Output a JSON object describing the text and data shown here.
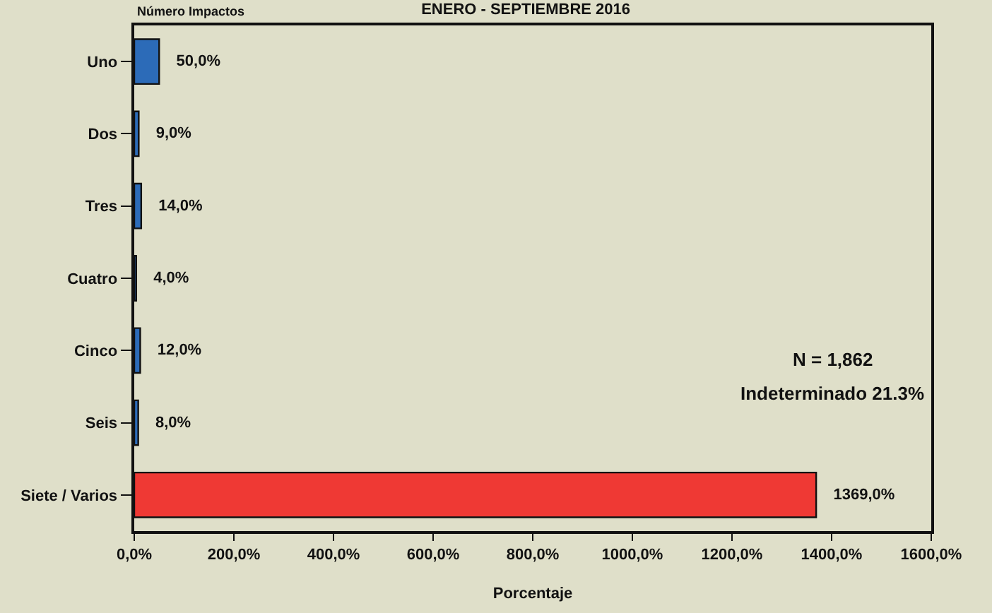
{
  "chart_data": {
    "type": "bar",
    "orientation": "horizontal",
    "title": "ENERO - SEPTIEMBRE 2016",
    "ylabel": "Número Impactos",
    "xlabel": "Porcentaje",
    "categories": [
      "Uno",
      "Dos",
      "Tres",
      "Cuatro",
      "Cinco",
      "Seis",
      "Siete / Varios"
    ],
    "values": [
      50,
      9,
      14,
      4,
      12,
      8,
      1369
    ],
    "colors": [
      "#2c6bb8",
      "#2c6bb8",
      "#2c6bb8",
      "#2c6bb8",
      "#2c6bb8",
      "#2c6bb8",
      "#ef3934"
    ],
    "value_labels": [
      "50,0%",
      "9,0%",
      "14,0%",
      "4,0%",
      "12,0%",
      "8,0%",
      "1369,0%"
    ],
    "xlim": [
      0,
      1600
    ],
    "xticks": [
      {
        "value": 0,
        "label": "0,0%"
      },
      {
        "value": 200,
        "label": "200,0%"
      },
      {
        "value": 400,
        "label": "400,0%"
      },
      {
        "value": 600,
        "label": "600,0%"
      },
      {
        "value": 800,
        "label": "800,0%"
      },
      {
        "value": 1000,
        "label": "1000,0%"
      },
      {
        "value": 1200,
        "label": "1200,0%"
      },
      {
        "value": 1400,
        "label": "1400,0%"
      },
      {
        "value": 1600,
        "label": "1600,0%"
      }
    ],
    "annotations": [
      "N = 1,862",
      "Indeterminado 21.3%"
    ]
  }
}
